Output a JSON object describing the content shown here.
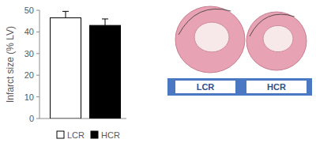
{
  "chart_data": {
    "type": "bar",
    "y_label": "Infarct size (% LV)",
    "categories": [
      "LCR",
      "HCR"
    ],
    "values": [
      46.5,
      43
    ],
    "error": [
      3,
      3
    ],
    "colors": [
      "#ffffff",
      "#000000"
    ],
    "ylim": [
      0,
      50
    ],
    "yticks": [
      0,
      10,
      20,
      30,
      40,
      50
    ],
    "legend": "bottom",
    "tick_labels": "y"
  },
  "image_panel": {
    "labels": [
      "LCR",
      "HCR"
    ]
  }
}
